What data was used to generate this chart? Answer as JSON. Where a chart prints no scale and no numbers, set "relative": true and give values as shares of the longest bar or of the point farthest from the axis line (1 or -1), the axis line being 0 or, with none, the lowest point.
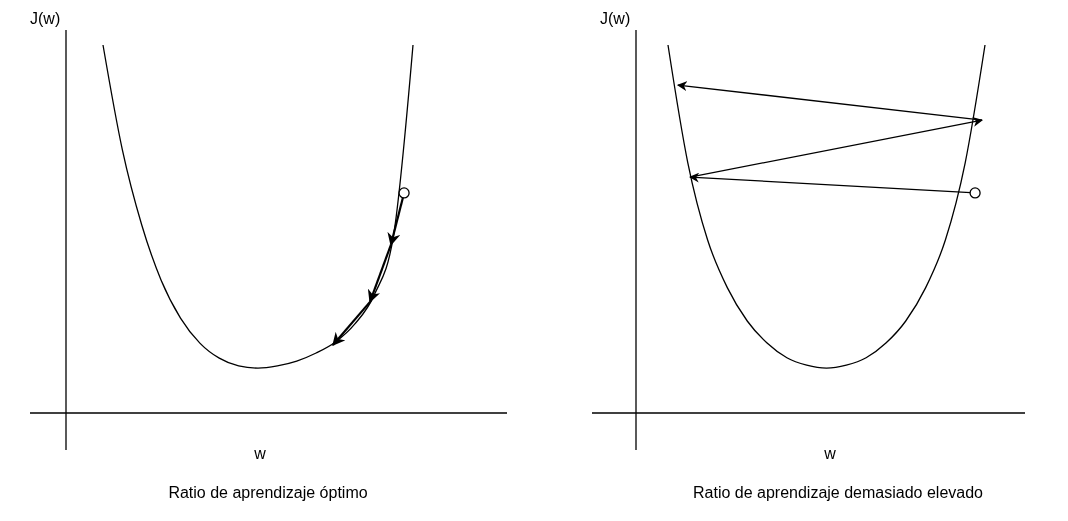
{
  "chart_data": [
    {
      "type": "line",
      "title": "Ratio de aprendizaje óptimo",
      "xlabel": "w",
      "ylabel": "J(w)",
      "relative": true,
      "categories": [
        null,
        null,
        null,
        null,
        null,
        null,
        null,
        null,
        null,
        null,
        null,
        null,
        null,
        null,
        null,
        null,
        null
      ],
      "series": [
        {
          "color": "#000000",
          "values": [
            1.0,
            0.715,
            0.511,
            0.361,
            0.258,
            0.19,
            0.149,
            0.128,
            0.122,
            0.128,
            0.141,
            0.163,
            0.193,
            0.242,
            0.321,
            0.484,
            1.0
          ]
        }
      ]
    },
    {
      "type": "line",
      "title": "Ratio de aprendizaje demasiado elevado",
      "xlabel": "w",
      "ylabel": "J(w)",
      "relative": true,
      "categories": [
        null,
        null,
        null,
        null,
        null,
        null,
        null,
        null,
        null,
        null,
        null,
        null,
        null,
        null,
        null,
        null,
        null
      ],
      "series": [
        {
          "color": "#000000",
          "values": [
            1.0,
            0.68,
            0.47,
            0.34,
            0.25,
            0.19,
            0.15,
            0.13,
            0.122,
            0.13,
            0.15,
            0.19,
            0.25,
            0.34,
            0.47,
            0.68,
            1.0
          ]
        }
      ]
    }
  ]
}
